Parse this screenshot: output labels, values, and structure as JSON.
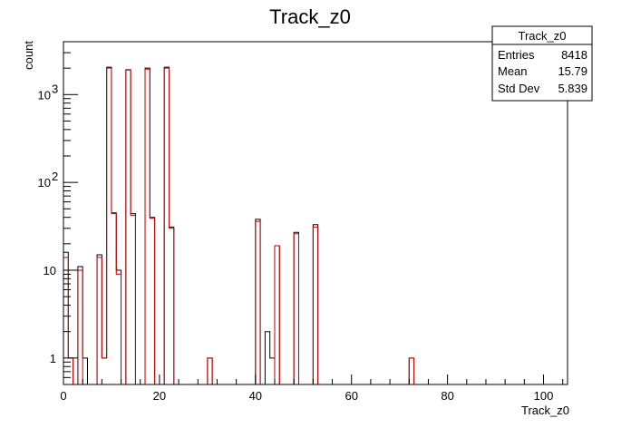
{
  "chart_data": {
    "type": "bar",
    "title": "Track_z0",
    "xlabel": "Track_z0",
    "ylabel": "count",
    "xlim": [
      0,
      105
    ],
    "ylim": [
      0.5,
      4000
    ],
    "log_y": true,
    "x_ticks": [
      "0",
      "20",
      "40",
      "60",
      "80",
      "100"
    ],
    "y_ticks": [
      "1",
      "10",
      "10",
      "10"
    ],
    "y_tick_exponents": [
      "",
      "",
      "2",
      "3"
    ],
    "grid": false,
    "legend": "none",
    "bin_width": 1,
    "series": [
      {
        "color": "#000000",
        "bins": [
          [
            0,
            16
          ],
          [
            1,
            1
          ],
          [
            3,
            11
          ],
          [
            4,
            1
          ],
          [
            7,
            15
          ],
          [
            8,
            1
          ],
          [
            9,
            2050
          ],
          [
            10,
            45
          ],
          [
            11,
            10
          ],
          [
            13,
            1920
          ],
          [
            14,
            44
          ],
          [
            17,
            2000
          ],
          [
            18,
            40
          ],
          [
            21,
            2050
          ],
          [
            22,
            31
          ],
          [
            30,
            1
          ],
          [
            40,
            38
          ],
          [
            42,
            2
          ],
          [
            43,
            1
          ],
          [
            44,
            19
          ],
          [
            48,
            27
          ],
          [
            52,
            33
          ],
          [
            72,
            1
          ]
        ]
      },
      {
        "color": "#cc0000",
        "bins": [
          [
            0,
            14
          ],
          [
            1,
            1
          ],
          [
            3,
            10
          ],
          [
            7,
            14
          ],
          [
            8,
            1
          ],
          [
            9,
            2000
          ],
          [
            10,
            44
          ],
          [
            11,
            9
          ],
          [
            13,
            1900
          ],
          [
            14,
            42
          ],
          [
            17,
            1950
          ],
          [
            18,
            39
          ],
          [
            21,
            2000
          ],
          [
            22,
            30
          ],
          [
            30,
            1
          ],
          [
            40,
            36
          ],
          [
            44,
            19
          ],
          [
            48,
            26
          ],
          [
            52,
            31
          ],
          [
            72,
            1
          ]
        ]
      }
    ],
    "stats": {
      "title": "Track_z0",
      "rows": [
        {
          "label": "Entries",
          "value": "8418"
        },
        {
          "label": "Mean",
          "value": "15.79"
        },
        {
          "label": "Std Dev",
          "value": "5.839"
        }
      ]
    }
  }
}
